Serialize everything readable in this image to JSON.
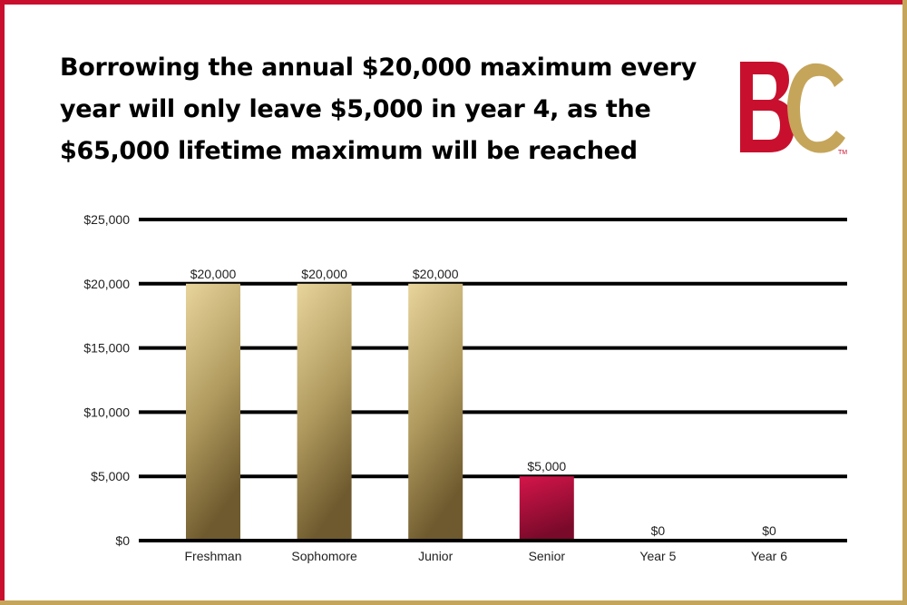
{
  "title": "Borrowing the annual $20,000 maximum every year will only leave $5,000 in year 4, as the $65,000 lifetime maximum will be reached",
  "logo": {
    "text": "BC",
    "trademark": "TM"
  },
  "colors": {
    "gold_light": "#e8d59c",
    "gold_dark": "#6e5a2e",
    "crimson_light": "#d4154a",
    "crimson_dark": "#7a0a2a",
    "brand_red": "#c8102e",
    "brand_gold": "#c5a55a"
  },
  "chart_data": {
    "type": "bar",
    "title": "Borrowing the annual $20,000 maximum every year will only leave $5,000 in year 4, as the $65,000 lifetime maximum will be reached",
    "categories": [
      "Freshman",
      "Sophomore",
      "Junior",
      "Senior",
      "Year 5",
      "Year 6"
    ],
    "values": [
      20000,
      20000,
      20000,
      5000,
      0,
      0
    ],
    "value_labels": [
      "$20,000",
      "$20,000",
      "$20,000",
      "$5,000",
      "$0",
      "$0"
    ],
    "bar_colors": [
      "gold",
      "gold",
      "gold",
      "crimson",
      "gold",
      "gold"
    ],
    "y_ticks": [
      0,
      5000,
      10000,
      15000,
      20000,
      25000
    ],
    "y_tick_labels": [
      "$0",
      "$5,000",
      "$10,000",
      "$15,000",
      "$20,000",
      "$25,000"
    ],
    "ylim": [
      0,
      25000
    ],
    "xlabel": "",
    "ylabel": "",
    "grid": true,
    "legend": "none"
  }
}
